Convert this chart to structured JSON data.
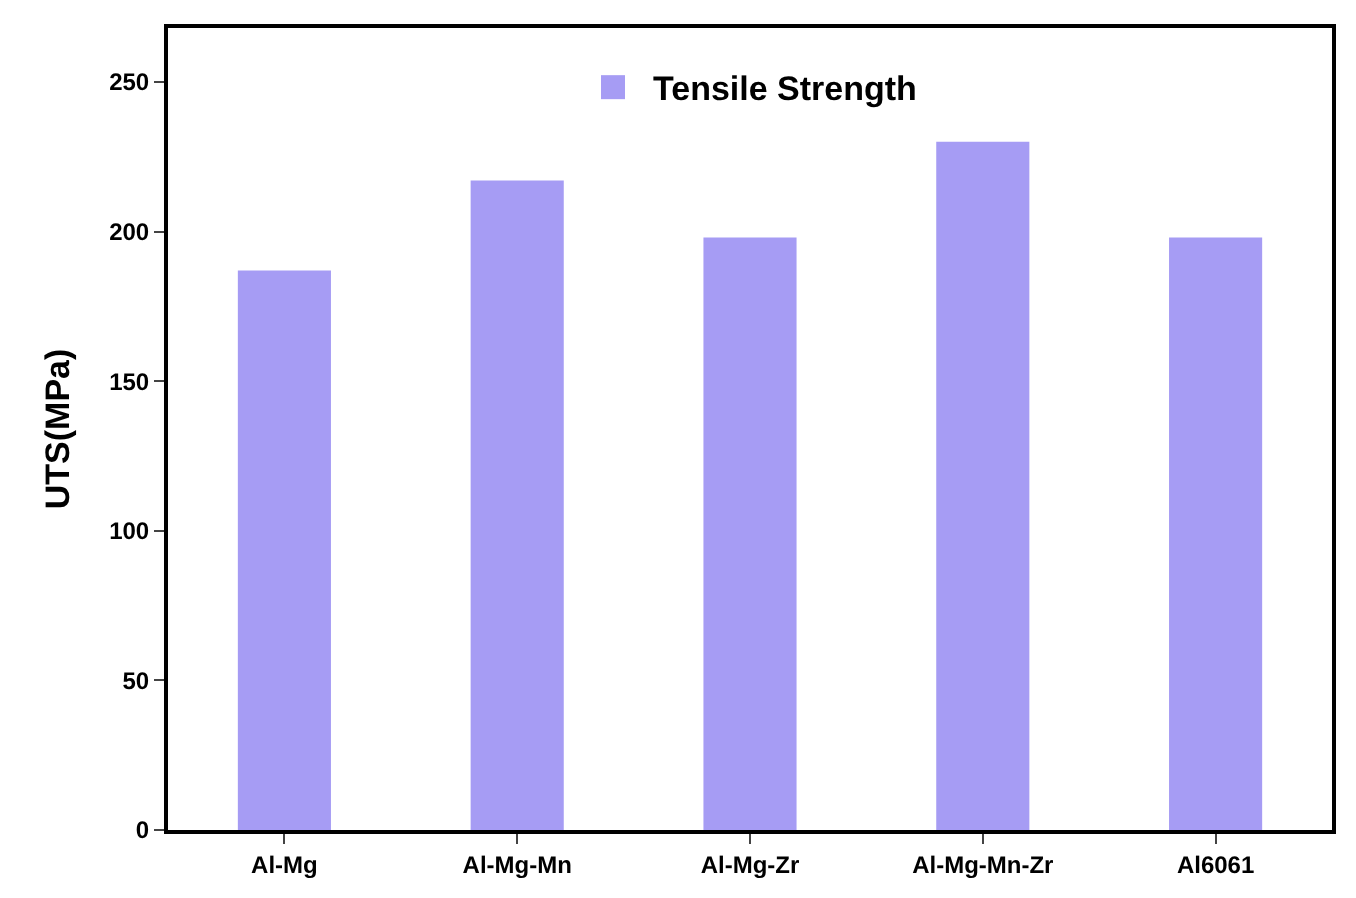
{
  "chart_data": {
    "type": "bar",
    "ylabel": "UTS(MPa)",
    "categories": [
      "Al-Mg",
      "Al-Mg-Mn",
      "Al-Mg-Zr",
      "Al-Mg-Mn-Zr",
      "Al6061"
    ],
    "series": [
      {
        "name": "Tensile Strength",
        "color": "#a69cf4",
        "values": [
          187,
          217,
          198,
          230,
          198
        ]
      }
    ],
    "ylim": [
      0,
      268
    ],
    "yticks": [
      0,
      50,
      100,
      150,
      200,
      250
    ],
    "legend": "top"
  }
}
